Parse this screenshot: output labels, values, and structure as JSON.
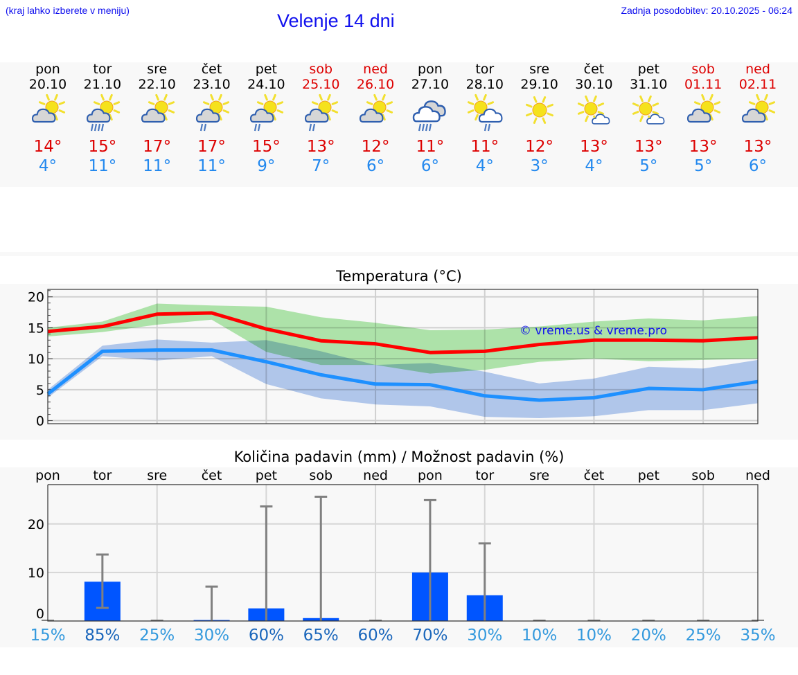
{
  "header": {
    "hint": "(kraj lahko izberete v meniju)",
    "title": "Velenje 14 dni",
    "updated": "Zadnja posodobitev: 20.10.2025 - 06:24"
  },
  "colors": {
    "max": "#ff0000",
    "min": "#1e90ff",
    "max_band": "#aee8aa",
    "min_band": "#adc6f0",
    "bar": "#0055ff",
    "err": "#808080",
    "pct_low": "#3399dd",
    "pct_high": "#1a66bb",
    "weekend": "#dd0000"
  },
  "days": [
    {
      "name": "pon",
      "date": "20.10",
      "weekend": false,
      "icon": "partly-cloudy",
      "rain": 0,
      "max": "14°",
      "min": "4°"
    },
    {
      "name": "tor",
      "date": "21.10",
      "weekend": false,
      "icon": "partly-cloudy",
      "rain": 4,
      "max": "15°",
      "min": "11°"
    },
    {
      "name": "sre",
      "date": "22.10",
      "weekend": false,
      "icon": "partly-cloudy",
      "rain": 0,
      "max": "17°",
      "min": "11°"
    },
    {
      "name": "čet",
      "date": "23.10",
      "weekend": false,
      "icon": "partly-cloudy",
      "rain": 2,
      "max": "17°",
      "min": "11°"
    },
    {
      "name": "pet",
      "date": "24.10",
      "weekend": false,
      "icon": "partly-cloudy",
      "rain": 2,
      "max": "15°",
      "min": "9°"
    },
    {
      "name": "sob",
      "date": "25.10",
      "weekend": true,
      "icon": "partly-cloudy",
      "rain": 2,
      "max": "13°",
      "min": "7°"
    },
    {
      "name": "ned",
      "date": "26.10",
      "weekend": true,
      "icon": "partly-cloudy",
      "rain": 0,
      "max": "12°",
      "min": "6°"
    },
    {
      "name": "pon",
      "date": "27.10",
      "weekend": false,
      "icon": "cloudy",
      "rain": 4,
      "max": "11°",
      "min": "6°"
    },
    {
      "name": "tor",
      "date": "28.10",
      "weekend": false,
      "icon": "sun-white-cloud",
      "rain": 2,
      "max": "11°",
      "min": "4°"
    },
    {
      "name": "sre",
      "date": "29.10",
      "weekend": false,
      "icon": "sunny",
      "rain": 0,
      "max": "12°",
      "min": "3°"
    },
    {
      "name": "čet",
      "date": "30.10",
      "weekend": false,
      "icon": "sun-small-cloud",
      "rain": 0,
      "max": "13°",
      "min": "4°"
    },
    {
      "name": "pet",
      "date": "31.10",
      "weekend": false,
      "icon": "sun-small-cloud",
      "rain": 0,
      "max": "13°",
      "min": "5°"
    },
    {
      "name": "sob",
      "date": "01.11",
      "weekend": true,
      "icon": "partly-cloudy",
      "rain": 0,
      "max": "13°",
      "min": "5°"
    },
    {
      "name": "ned",
      "date": "02.11",
      "weekend": true,
      "icon": "partly-cloudy",
      "rain": 0,
      "max": "13°",
      "min": "6°"
    }
  ],
  "chart_data": [
    {
      "type": "line",
      "title": "Temperatura (°C)",
      "watermark": "© vreme.us & vreme.pro",
      "ylim": [
        -0.5,
        21.2
      ],
      "yticks": [
        "0",
        "5",
        "10",
        "15",
        "20"
      ],
      "grid": true,
      "series": [
        {
          "name": "max",
          "values": [
            14.4,
            15.2,
            17.2,
            17.4,
            14.8,
            12.9,
            12.4,
            11.0,
            11.2,
            12.3,
            13.0,
            13.0,
            12.9,
            13.4
          ],
          "band_low": [
            13.6,
            14.3,
            15.5,
            16.3,
            11.1,
            9.0,
            9.0,
            7.6,
            8.2,
            9.5,
            10.0,
            9.6,
            9.8,
            10.0
          ],
          "band_high": [
            15.0,
            16.0,
            18.9,
            18.6,
            18.4,
            16.7,
            15.8,
            14.6,
            14.7,
            15.2,
            16.0,
            16.5,
            16.2,
            16.9
          ]
        },
        {
          "name": "min",
          "values": [
            4.3,
            11.2,
            11.4,
            11.4,
            9.5,
            7.4,
            5.9,
            5.8,
            4.0,
            3.3,
            3.7,
            5.2,
            5.0,
            6.3
          ],
          "band_low": [
            3.7,
            10.4,
            9.7,
            10.4,
            5.9,
            3.6,
            2.6,
            2.3,
            0.6,
            0.4,
            0.7,
            1.7,
            1.7,
            2.8
          ],
          "band_high": [
            5.0,
            12.1,
            13.1,
            12.6,
            13.0,
            11.2,
            9.0,
            9.3,
            7.9,
            6.0,
            6.8,
            8.7,
            8.4,
            9.8
          ]
        }
      ]
    },
    {
      "type": "bar",
      "title": "Količina padavin (mm) / Možnost padavin (%)",
      "categories": [
        "pon",
        "tor",
        "sre",
        "čet",
        "pet",
        "sob",
        "ned",
        "pon",
        "tor",
        "sre",
        "čet",
        "pet",
        "sob",
        "ned"
      ],
      "ylim": [
        0,
        28.1
      ],
      "yticks": [
        "0",
        "10",
        "20"
      ],
      "values": [
        0,
        8.1,
        0,
        0.2,
        2.6,
        0.6,
        0,
        10.0,
        5.3,
        0,
        0,
        0,
        0,
        0
      ],
      "err_low": [
        0,
        2.7,
        0,
        0,
        0,
        0,
        0,
        0,
        0,
        0,
        0,
        0,
        0,
        0
      ],
      "err_high": [
        0,
        13.7,
        0,
        7.1,
        23.6,
        25.6,
        0,
        24.9,
        16.0,
        0,
        0,
        0,
        0,
        0
      ],
      "probability": [
        "15%",
        "85%",
        "25%",
        "30%",
        "60%",
        "65%",
        "60%",
        "70%",
        "30%",
        "10%",
        "10%",
        "20%",
        "25%",
        "35%"
      ],
      "probability_values": [
        15,
        85,
        25,
        30,
        60,
        65,
        60,
        70,
        30,
        10,
        10,
        20,
        25,
        35
      ]
    }
  ]
}
